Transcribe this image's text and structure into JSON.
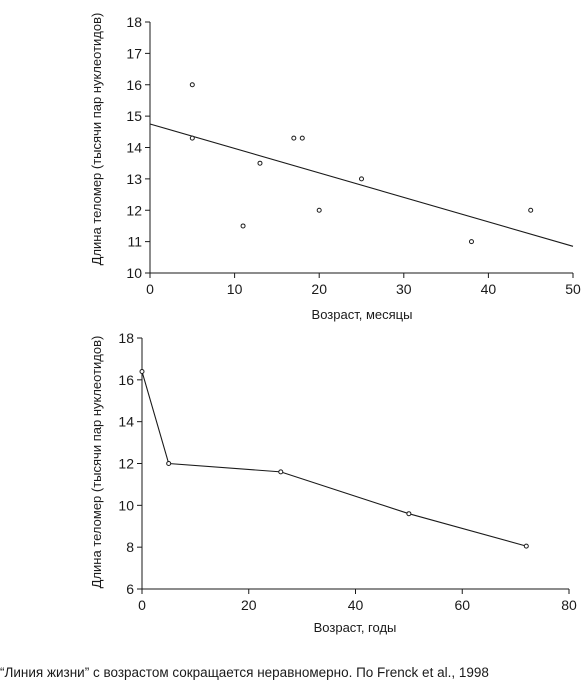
{
  "caption": "“Линия жизни” с возрастом сокращается неравномерно. По Frenck et al., 1998",
  "colors": {
    "ink": "#1a1a1a",
    "grid": "#cfcfcf",
    "background": "#ffffff"
  },
  "chart_data": [
    {
      "type": "scatter",
      "xlabel": "Возраст, месяцы",
      "ylabel": "Длина теломер (тысячи пар нуклеотидов)",
      "xlim": [
        0,
        50
      ],
      "ylim": [
        10,
        18
      ],
      "xticks": [
        0,
        10,
        20,
        30,
        40,
        50
      ],
      "yticks": [
        10,
        11,
        12,
        13,
        14,
        15,
        16,
        17,
        18
      ],
      "grid": false,
      "points": [
        {
          "x": 5,
          "y": 16.0
        },
        {
          "x": 5,
          "y": 14.3
        },
        {
          "x": 11,
          "y": 11.5
        },
        {
          "x": 13,
          "y": 13.5
        },
        {
          "x": 17,
          "y": 14.3
        },
        {
          "x": 18,
          "y": 14.3
        },
        {
          "x": 20,
          "y": 12.0
        },
        {
          "x": 25,
          "y": 13.0
        },
        {
          "x": 38,
          "y": 11.0
        },
        {
          "x": 45,
          "y": 12.0
        }
      ],
      "trendline": {
        "x": [
          0,
          50
        ],
        "y": [
          14.75,
          10.85
        ]
      }
    },
    {
      "type": "line",
      "xlabel": "Возраст, годы",
      "ylabel": "Длина теломер (тысячи пар нуклеотидов)",
      "xlim": [
        0,
        80
      ],
      "ylim": [
        6,
        18
      ],
      "xticks": [
        0,
        20,
        40,
        60,
        80
      ],
      "yticks": [
        6,
        8,
        10,
        12,
        14,
        16,
        18
      ],
      "grid": false,
      "x": [
        0,
        5,
        26,
        50,
        72
      ],
      "y": [
        16.4,
        12.0,
        11.6,
        9.6,
        8.05
      ]
    }
  ]
}
